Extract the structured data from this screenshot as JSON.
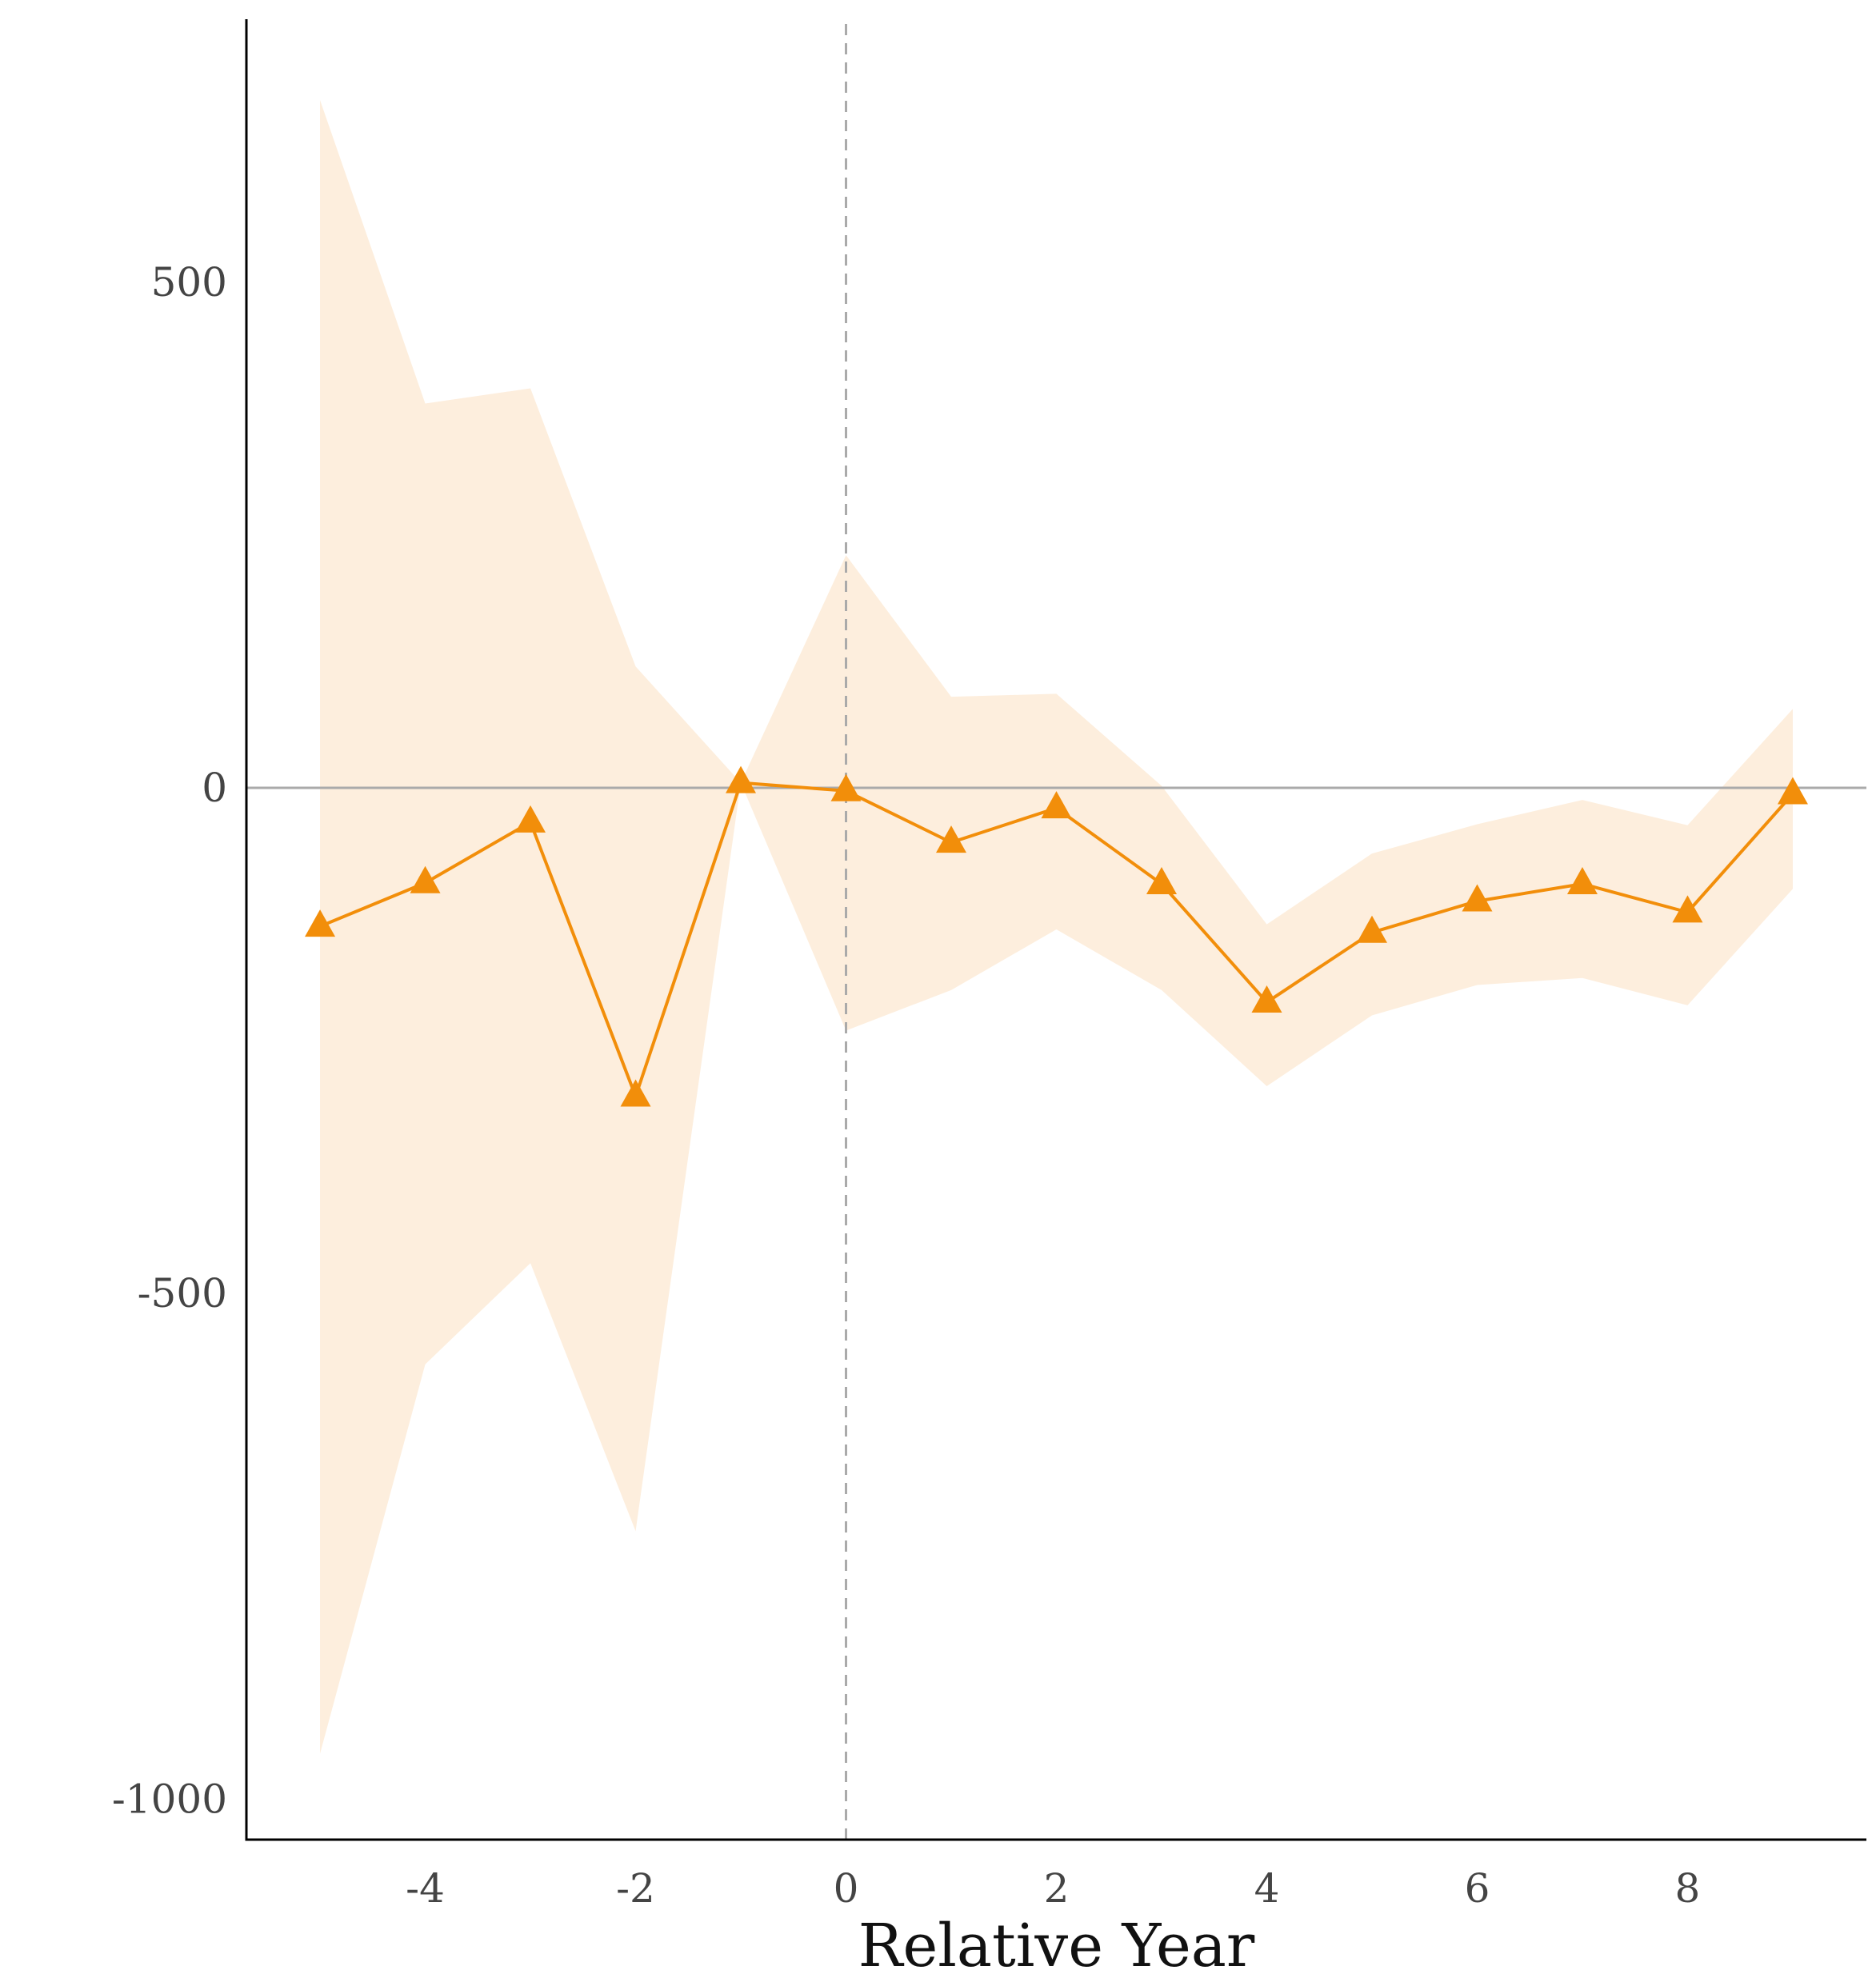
{
  "chart_data": {
    "type": "line",
    "title": "",
    "xlabel": "Relative Year",
    "ylabel": "",
    "xlim": [
      -5.7,
      9.7
    ],
    "ylim": [
      -1040,
      760
    ],
    "x_ticks": [
      -4,
      -2,
      0,
      2,
      4,
      6,
      8
    ],
    "x_tick_labels": [
      "-4",
      "-2",
      "0",
      "2",
      "4",
      "6",
      "8"
    ],
    "y_ticks": [
      500,
      0,
      -500,
      -1000
    ],
    "y_tick_labels": [
      "500",
      "0",
      "-500",
      "-1000"
    ],
    "grid": false,
    "legend": "none",
    "reference_lines": {
      "horizontal_y": 0,
      "vertical_x": 0
    },
    "colors": {
      "line": "#f28e0a",
      "marker": "#f28e0a",
      "band": "#fdeedd",
      "reference": "#aaaaaa",
      "axis": "#000000"
    },
    "series": [
      {
        "marker": "triangle",
        "x": [
          -5,
          -4,
          -3,
          -2,
          -1,
          0,
          1,
          2,
          3,
          4,
          5,
          6,
          7,
          8,
          9
        ],
        "values": [
          -137,
          -94,
          -34,
          -305,
          5,
          -3,
          -54,
          -20,
          -95,
          -212,
          -143,
          -112,
          -95,
          -123,
          -6
        ],
        "ci_upper": [
          680,
          380,
          395,
          120,
          5,
          230,
          90,
          93,
          2,
          -135,
          -65,
          -36,
          -12,
          -37,
          78
        ],
        "ci_lower": [
          -955,
          -570,
          -470,
          -735,
          5,
          -240,
          -200,
          -140,
          -200,
          -295,
          -225,
          -195,
          -188,
          -215,
          -100
        ]
      }
    ]
  }
}
